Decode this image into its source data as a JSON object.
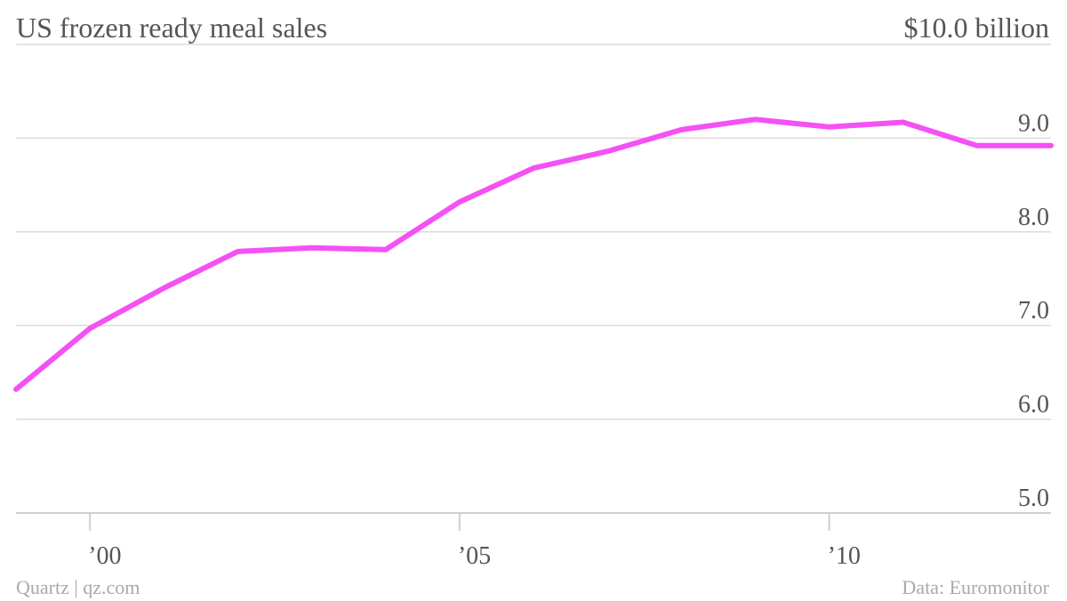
{
  "chart_data": {
    "type": "line",
    "title": "US frozen ready meal sales",
    "unit_label": "$10.0 billion",
    "source": "Data: Euromonitor",
    "credit": "Quartz | qz.com",
    "x": [
      1999,
      2000,
      2001,
      2002,
      2003,
      2004,
      2005,
      2006,
      2007,
      2008,
      2009,
      2010,
      2011,
      2012,
      2013
    ],
    "series": [
      {
        "values": [
          6.32,
          6.97,
          7.4,
          7.79,
          7.83,
          7.81,
          8.32,
          8.68,
          8.86,
          9.09,
          9.2,
          9.12,
          9.17,
          8.92,
          8.92
        ]
      }
    ],
    "x_ticks": [
      {
        "value": 2000,
        "label": "’00"
      },
      {
        "value": 2005,
        "label": "’05"
      },
      {
        "value": 2010,
        "label": "’10"
      }
    ],
    "y_ticks": [
      {
        "value": 5,
        "label": "5.0"
      },
      {
        "value": 6,
        "label": "6.0"
      },
      {
        "value": 7,
        "label": "7.0"
      },
      {
        "value": 8,
        "label": "8.0"
      },
      {
        "value": 9,
        "label": "9.0"
      }
    ],
    "ylim": [
      5,
      10
    ],
    "xlim": [
      1999,
      2013
    ],
    "line_color": "#f451f5",
    "grid": true
  }
}
